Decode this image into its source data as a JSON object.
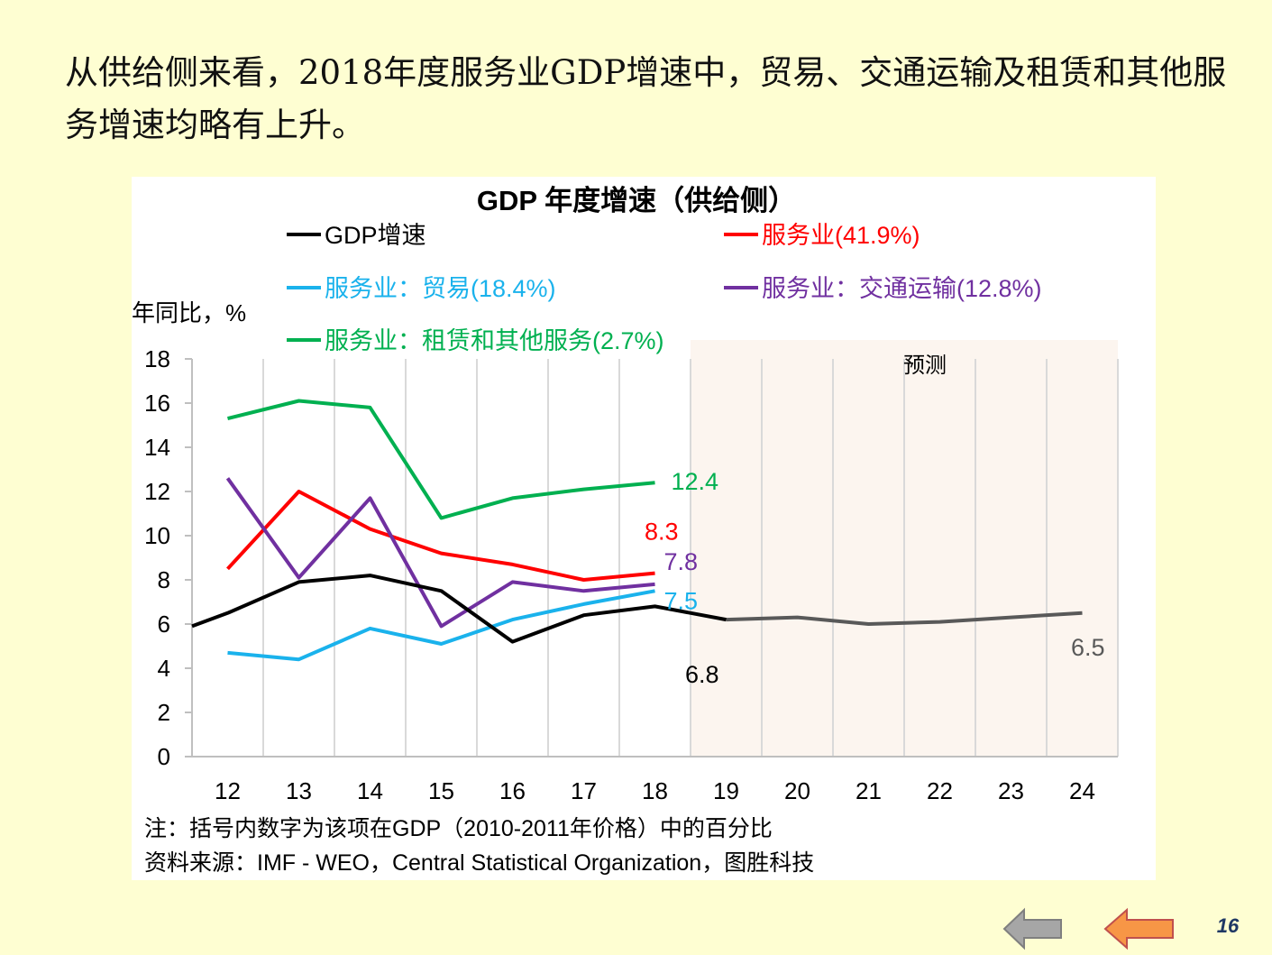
{
  "slide": {
    "heading": "从供给侧来看，2018年度服务业GDP增速中，贸易、交通运输及租赁和其他服务增速均略有上升。",
    "page_number": "16"
  },
  "navigation": {
    "prev_icon": "left-arrow-gray-icon",
    "back_icon": "left-arrow-orange-icon"
  },
  "colors": {
    "gdp": "#000000",
    "services": "#ff0000",
    "trade": "#1ab2ec",
    "transport": "#7030a0",
    "leasing": "#00b050",
    "forecast": "#595959",
    "forecast_bg": "#fcf5ef"
  },
  "chart_data": {
    "type": "line",
    "title": "GDP 年度增速（供给侧）",
    "ylabel": "年同比，%",
    "xlabel": "",
    "categories": [
      "12",
      "13",
      "14",
      "15",
      "16",
      "17",
      "18",
      "19",
      "20",
      "21",
      "22",
      "23",
      "24"
    ],
    "ylim": [
      0,
      18
    ],
    "yticks": [
      "0",
      "2",
      "4",
      "6",
      "8",
      "10",
      "12",
      "14",
      "16",
      "18"
    ],
    "forecast_label": "预测",
    "forecast_from": "19",
    "series": [
      {
        "name": "GDP增速",
        "key": "gdp",
        "x": [
          11.5,
          12,
          13,
          14,
          15,
          16,
          17,
          18,
          19
        ],
        "values": [
          5.9,
          6.5,
          7.9,
          8.2,
          7.5,
          5.2,
          6.4,
          6.8,
          6.2
        ],
        "end_label": "6.8"
      },
      {
        "name": "服务业(41.9%)",
        "key": "services",
        "x": [
          12,
          13,
          14,
          15,
          16,
          17,
          18
        ],
        "values": [
          8.5,
          12.0,
          10.3,
          9.2,
          8.7,
          8.0,
          8.3
        ],
        "end_label": "8.3"
      },
      {
        "name": "服务业：贸易(18.4%)",
        "key": "trade",
        "x": [
          12,
          13,
          14,
          15,
          16,
          17,
          18
        ],
        "values": [
          4.7,
          4.4,
          5.8,
          5.1,
          6.2,
          6.9,
          7.5
        ],
        "end_label": "7.5"
      },
      {
        "name": "服务业：交通运输(12.8%)",
        "key": "transport",
        "x": [
          12,
          13,
          14,
          15,
          16,
          17,
          18
        ],
        "values": [
          12.6,
          8.1,
          11.7,
          5.9,
          7.9,
          7.5,
          7.8
        ],
        "end_label": "7.8"
      },
      {
        "name": "服务业：租赁和其他服务(2.7%)",
        "key": "leasing",
        "x": [
          12,
          13,
          14,
          15,
          16,
          17,
          18
        ],
        "values": [
          15.3,
          16.1,
          15.8,
          10.8,
          11.7,
          12.1,
          12.4
        ],
        "end_label": "12.4"
      },
      {
        "name": "GDP增速（预测）",
        "key": "forecast",
        "x": [
          19,
          20,
          21,
          22,
          23,
          24
        ],
        "values": [
          6.2,
          6.3,
          6.0,
          6.1,
          6.3,
          6.5
        ],
        "end_label": "6.5"
      }
    ],
    "note": "注：括号内数字为该项在GDP（2010-2011年价格）中的百分比",
    "source": "资料来源：IMF - WEO，Central Statistical Organization，图胜科技"
  }
}
